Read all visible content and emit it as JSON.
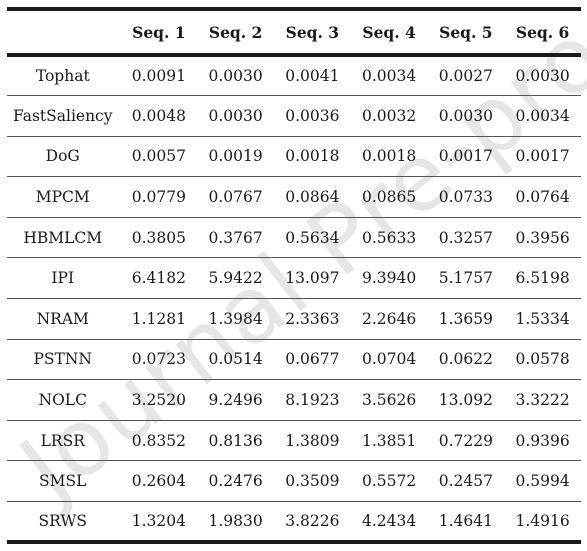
{
  "watermark": "Journal Pre-proof",
  "table": {
    "header": [
      "",
      "Seq. 1",
      "Seq. 2",
      "Seq. 3",
      "Seq. 4",
      "Seq. 5",
      "Seq. 6"
    ],
    "rows": [
      {
        "method": "Tophat",
        "values": [
          "0.0091",
          "0.0030",
          "0.0041",
          "0.0034",
          "0.0027",
          "0.0030"
        ]
      },
      {
        "method": "FastSaliency",
        "values": [
          "0.0048",
          "0.0030",
          "0.0036",
          "0.0032",
          "0.0030",
          "0.0034"
        ]
      },
      {
        "method": "DoG",
        "values": [
          "0.0057",
          "0.0019",
          "0.0018",
          "0.0018",
          "0.0017",
          "0.0017"
        ]
      },
      {
        "method": "MPCM",
        "values": [
          "0.0779",
          "0.0767",
          "0.0864",
          "0.0865",
          "0.0733",
          "0.0764"
        ]
      },
      {
        "method": "HBMLCM",
        "values": [
          "0.3805",
          "0.3767",
          "0.5634",
          "0.5633",
          "0.3257",
          "0.3956"
        ]
      },
      {
        "method": "IPI",
        "values": [
          "6.4182",
          "5.9422",
          "13.097",
          "9.3940",
          "5.1757",
          "6.5198"
        ]
      },
      {
        "method": "NRAM",
        "values": [
          "1.1281",
          "1.3984",
          "2.3363",
          "2.2646",
          "1.3659",
          "1.5334"
        ]
      },
      {
        "method": "PSTNN",
        "values": [
          "0.0723",
          "0.0514",
          "0.0677",
          "0.0704",
          "0.0622",
          "0.0578"
        ]
      },
      {
        "method": "NOLC",
        "values": [
          "3.2520",
          "9.2496",
          "8.1923",
          "3.5626",
          "13.092",
          "3.3222"
        ]
      },
      {
        "method": "LRSR",
        "values": [
          "0.8352",
          "0.8136",
          "1.3809",
          "1.3851",
          "0.7229",
          "0.9396"
        ]
      },
      {
        "method": "SMSL",
        "values": [
          "0.2604",
          "0.2476",
          "0.3509",
          "0.5572",
          "0.2457",
          "0.5994"
        ]
      },
      {
        "method": "SRWS",
        "values": [
          "1.3204",
          "1.9830",
          "3.8226",
          "4.2434",
          "1.4641",
          "1.4916"
        ]
      }
    ]
  }
}
